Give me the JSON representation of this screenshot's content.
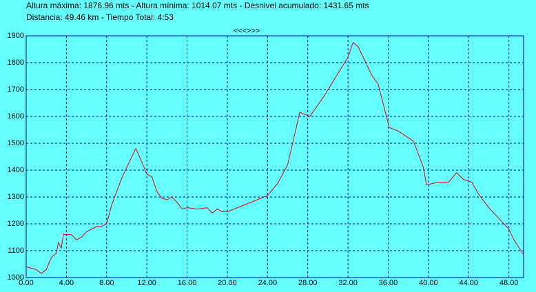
{
  "chart_data": {
    "type": "line",
    "title": "Altura máxima: 1876.96 mts - Altura mínima: 1014.07 mts - Desnivel acumulado: 1431.65 mts",
    "subtitle": "Distancia: 49.46 km - Tiempo Total: 4:53",
    "annotations": [
      "<<<>>>"
    ],
    "x": [
      0,
      1,
      1.5,
      2,
      2.5,
      3,
      3.2,
      3.5,
      3.7,
      4,
      4.5,
      5,
      5.5,
      6,
      7,
      7.5,
      8,
      8.5,
      9,
      9.5,
      10,
      10.5,
      10.9,
      11.5,
      12,
      12.5,
      13,
      13.5,
      14,
      14.5,
      15,
      15.5,
      16,
      17,
      18,
      18.5,
      19,
      19.5,
      20,
      21,
      22,
      23,
      24,
      25,
      26,
      27.2,
      28.2,
      29.6,
      31,
      32,
      32.5,
      33,
      34.4,
      35,
      36.1,
      37,
      38.5,
      39.5,
      39.8,
      41,
      42,
      42.8,
      43.5,
      44.3,
      45,
      46,
      47,
      48,
      48.5,
      49.46
    ],
    "series": [
      {
        "name": "Altura",
        "color": "#e00000",
        "values": [
          1040,
          1030,
          1015,
          1030,
          1075,
          1090,
          1130,
          1110,
          1160,
          1160,
          1160,
          1140,
          1150,
          1170,
          1190,
          1190,
          1200,
          1270,
          1320,
          1370,
          1410,
          1450,
          1480,
          1430,
          1385,
          1375,
          1320,
          1295,
          1290,
          1300,
          1280,
          1255,
          1260,
          1255,
          1260,
          1240,
          1255,
          1245,
          1245,
          1260,
          1275,
          1290,
          1305,
          1350,
          1420,
          1615,
          1600,
          1674,
          1760,
          1820,
          1875,
          1860,
          1751,
          1720,
          1559,
          1545,
          1508,
          1410,
          1345,
          1355,
          1355,
          1390,
          1365,
          1355,
          1310,
          1260,
          1220,
          1180,
          1140,
          1085
        ]
      }
    ],
    "xlim": [
      0,
      49.46
    ],
    "xticks": [
      {
        "value": 0,
        "label": "0.00"
      },
      {
        "value": 4,
        "label": "4.00"
      },
      {
        "value": 8,
        "label": "8.00"
      },
      {
        "value": 12,
        "label": "12.00"
      },
      {
        "value": 16,
        "label": "16.00"
      },
      {
        "value": 20,
        "label": "20.00"
      },
      {
        "value": 24,
        "label": "24.00"
      },
      {
        "value": 28,
        "label": "28.00"
      },
      {
        "value": 32,
        "label": "32.00"
      },
      {
        "value": 36,
        "label": "36.00"
      },
      {
        "value": 40,
        "label": "40.00"
      },
      {
        "value": 44,
        "label": "44.00"
      },
      {
        "value": 48,
        "label": "48.00"
      }
    ],
    "ylim": [
      1000,
      1900
    ],
    "yticks": [
      1000,
      1100,
      1200,
      1300,
      1400,
      1500,
      1600,
      1700,
      1800,
      1900
    ],
    "grid": true
  }
}
